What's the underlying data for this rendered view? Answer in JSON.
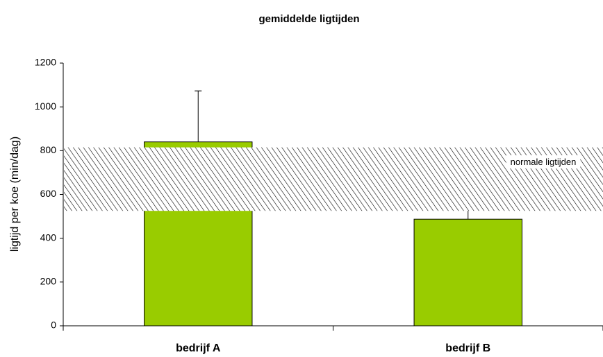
{
  "chart_data": {
    "type": "bar",
    "title": "gemiddelde ligtijden",
    "y_label": "ligtijd per koe (min/dag)",
    "categories": [
      "bedrijf A",
      "bedrijf B"
    ],
    "values": [
      840,
      487
    ],
    "errors": [
      233,
      97
    ],
    "color": "#99cc00",
    "ylim": [
      0,
      1200
    ],
    "yticks": [
      0,
      200,
      400,
      600,
      800,
      1000,
      1200
    ],
    "band": {
      "label": "normale ligtijden",
      "range": [
        525,
        815
      ]
    }
  }
}
